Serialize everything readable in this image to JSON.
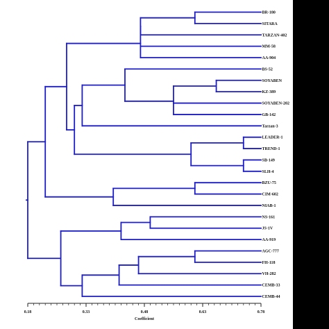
{
  "colors": {
    "tree": "#1c1cc8",
    "axis": "#222222",
    "side_bar": "#000000",
    "background": "#ffffff"
  },
  "axis": {
    "label": "Coefficient",
    "min": 0.18,
    "max": 0.78,
    "ticks": [
      "0.18",
      "0.33",
      "0.48",
      "0.63",
      "0.78"
    ]
  },
  "leaves": [
    "BR-180",
    "SITARA",
    "TARZAN-402",
    "MM-58",
    "AA-904",
    "BS-52",
    "SOYABEN",
    "KZ-389",
    "SOYABEN-202",
    "GB-142",
    "Tarzan-3",
    "LEADER-1",
    "TREND-1",
    "SB-149",
    "SLH-4",
    "BZU-75",
    "CIM-602",
    "NIAB-1",
    "NS-161",
    "JS-1V",
    "AA-919",
    "AGC-777",
    "FH-118",
    "VH-282",
    "CEMB-33",
    "CEMB-44"
  ],
  "tree": {
    "h": 0.18,
    "children": [
      {
        "h": 0.225,
        "children": [
          {
            "h": 0.28,
            "children": [
              {
                "h": 0.47,
                "children": [
                  {
                    "h": 0.47,
                    "children": [
                      {
                        "h": 0.61,
                        "children": [
                          {
                            "leaf": 0
                          },
                          {
                            "leaf": 1
                          }
                        ]
                      },
                      {
                        "leaf": 2
                      }
                    ]
                  },
                  {
                    "leaf": 3
                  },
                  {
                    "leaf": 4
                  }
                ]
              },
              {
                "h": 0.3,
                "children": [
                  {
                    "h": 0.32,
                    "children": [
                      {
                        "h": 0.43,
                        "children": [
                          {
                            "leaf": 5
                          },
                          {
                            "h": 0.555,
                            "children": [
                              {
                                "h": 0.665,
                                "children": [
                                  {
                                    "leaf": 6
                                  },
                                  {
                                    "leaf": 7
                                  }
                                ]
                              },
                              {
                                "leaf": 8
                              },
                              {
                                "leaf": 9
                              }
                            ]
                          }
                        ]
                      },
                      {
                        "leaf": 10
                      }
                    ]
                  },
                  {
                    "h": 0.6,
                    "children": [
                      {
                        "h": 0.735,
                        "children": [
                          {
                            "leaf": 11
                          },
                          {
                            "leaf": 12
                          }
                        ]
                      },
                      {
                        "h": 0.735,
                        "children": [
                          {
                            "leaf": 13
                          },
                          {
                            "leaf": 14
                          }
                        ]
                      }
                    ]
                  }
                ]
              }
            ]
          },
          {
            "h": 0.4,
            "children": [
              {
                "h": 0.61,
                "children": [
                  {
                    "leaf": 15
                  },
                  {
                    "leaf": 16
                  }
                ]
              },
              {
                "leaf": 17
              }
            ]
          }
        ]
      },
      {
        "h": 0.265,
        "children": [
          {
            "h": 0.42,
            "children": [
              {
                "h": 0.495,
                "children": [
                  {
                    "leaf": 18
                  },
                  {
                    "leaf": 19
                  }
                ]
              },
              {
                "leaf": 20
              }
            ]
          },
          {
            "h": 0.32,
            "children": [
              {
                "h": 0.415,
                "children": [
                  {
                    "h": 0.465,
                    "children": [
                      {
                        "h": 0.61,
                        "children": [
                          {
                            "leaf": 21
                          },
                          {
                            "leaf": 22
                          }
                        ]
                      },
                      {
                        "leaf": 23
                      }
                    ]
                  },
                  {
                    "leaf": 24
                  }
                ]
              },
              {
                "leaf": 25
              }
            ]
          }
        ]
      }
    ]
  }
}
